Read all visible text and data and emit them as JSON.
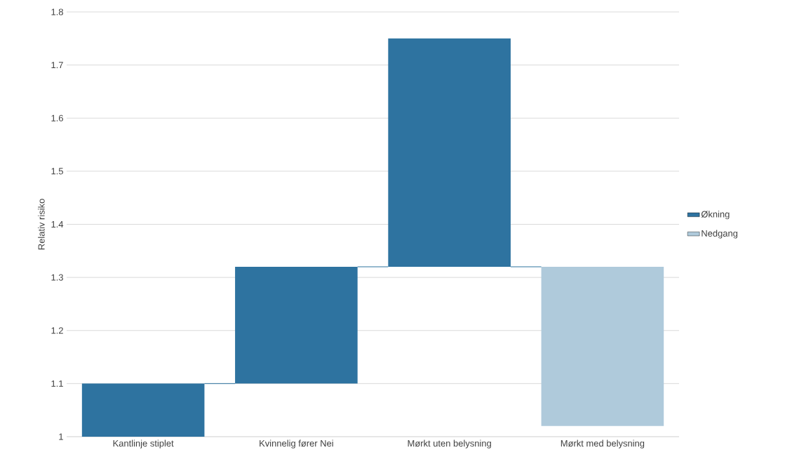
{
  "chart_data": {
    "type": "bar",
    "ylabel": "Relativ risiko",
    "categories": [
      "Kantlinje stiplet",
      "Kvinnelig fører Nei",
      "Mørkt uten belysning",
      "Mørkt med belysning"
    ],
    "series": [
      {
        "name": "Økning",
        "color": "#2e73a0",
        "base": [
          1,
          1.1,
          1.32,
          null
        ],
        "values": [
          0.1,
          0.22,
          0.43,
          null
        ]
      },
      {
        "name": "Nedgang",
        "color": "#afcadb",
        "base": [
          null,
          null,
          null,
          1.32
        ],
        "values": [
          null,
          null,
          null,
          -0.3
        ]
      }
    ],
    "ylim": [
      1,
      1.8
    ],
    "yticks": [
      1,
      1.1,
      1.2,
      1.3,
      1.4,
      1.5,
      1.6,
      1.7,
      1.8
    ],
    "grid": "y",
    "legend": "right"
  }
}
